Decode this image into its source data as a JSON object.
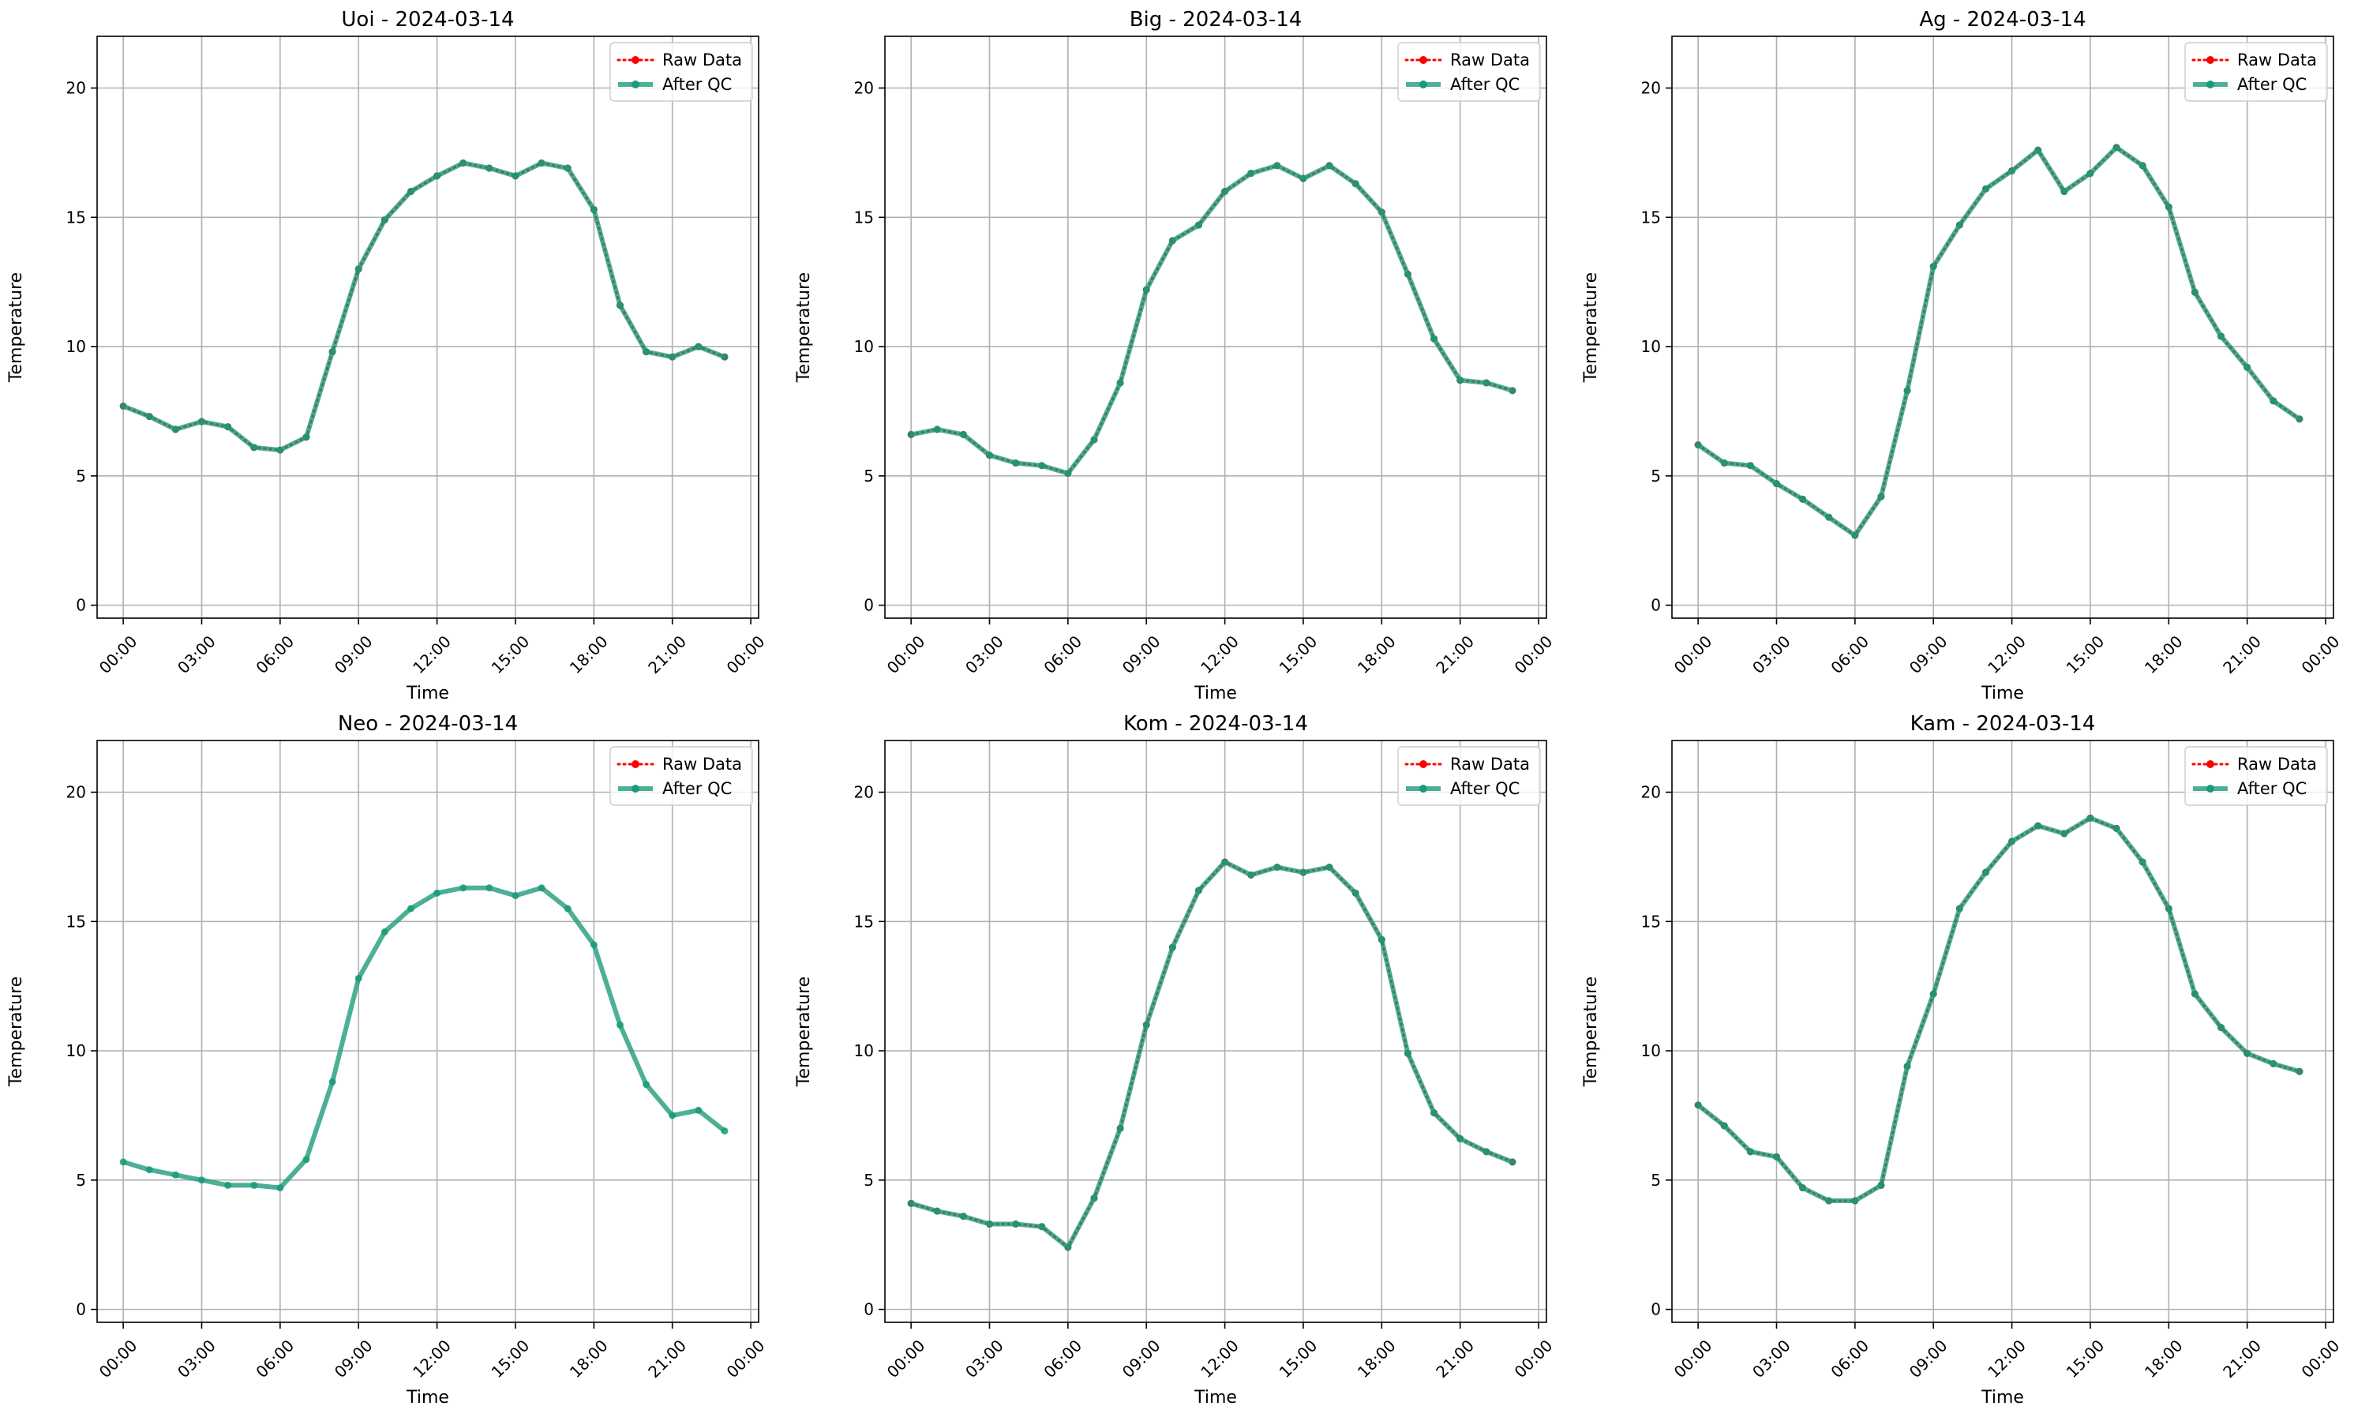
{
  "chart_data": [
    {
      "type": "line",
      "title": "Uoi - 2024-03-14",
      "xlabel": "Time",
      "ylabel": "Temperature",
      "x_tick_labels": [
        "00:00",
        "03:00",
        "06:00",
        "09:00",
        "12:00",
        "15:00",
        "18:00",
        "21:00",
        "00:00"
      ],
      "y_ticks": [
        0,
        5,
        10,
        15,
        20
      ],
      "ylim": [
        -0.5,
        22
      ],
      "grid": true,
      "legend_position": "top-right",
      "x_hours": [
        0,
        1,
        2,
        3,
        4,
        5,
        6,
        7,
        8,
        9,
        10,
        11,
        12,
        13,
        14,
        15,
        16,
        17,
        18,
        19,
        20,
        21,
        22,
        23
      ],
      "series": [
        {
          "name": "Raw Data",
          "color": "#ff0000",
          "style": "dotted",
          "values": [
            7.7,
            7.3,
            6.8,
            7.1,
            6.9,
            6.1,
            6.0,
            6.5,
            9.8,
            13.0,
            14.9,
            16.0,
            16.6,
            17.1,
            16.9,
            16.6,
            17.1,
            16.9,
            15.3,
            11.6,
            9.8,
            9.6,
            10.0,
            9.6
          ]
        },
        {
          "name": "After QC",
          "color": "#1a9a78",
          "style": "solid",
          "values": [
            7.7,
            7.3,
            6.8,
            7.1,
            6.9,
            6.1,
            6.0,
            6.5,
            9.8,
            13.0,
            14.9,
            16.0,
            16.6,
            17.1,
            16.9,
            16.6,
            17.1,
            16.9,
            15.3,
            11.6,
            9.8,
            9.6,
            10.0,
            9.6
          ]
        }
      ]
    },
    {
      "type": "line",
      "title": "Big - 2024-03-14",
      "xlabel": "Time",
      "ylabel": "Temperature",
      "x_tick_labels": [
        "00:00",
        "03:00",
        "06:00",
        "09:00",
        "12:00",
        "15:00",
        "18:00",
        "21:00",
        "00:00"
      ],
      "y_ticks": [
        0,
        5,
        10,
        15,
        20
      ],
      "ylim": [
        -0.5,
        22
      ],
      "grid": true,
      "legend_position": "top-right",
      "x_hours": [
        0,
        1,
        2,
        3,
        4,
        5,
        6,
        7,
        8,
        9,
        10,
        11,
        12,
        13,
        14,
        15,
        16,
        17,
        18,
        19,
        20,
        21,
        22,
        23
      ],
      "series": [
        {
          "name": "Raw Data",
          "color": "#ff0000",
          "style": "dotted",
          "values": [
            6.6,
            6.8,
            6.6,
            5.8,
            5.5,
            5.4,
            5.1,
            6.4,
            8.6,
            12.2,
            14.1,
            14.7,
            16.0,
            16.7,
            17.0,
            16.5,
            17.0,
            16.3,
            15.2,
            12.8,
            10.3,
            8.7,
            8.6,
            8.3
          ]
        },
        {
          "name": "After QC",
          "color": "#1a9a78",
          "style": "solid",
          "values": [
            6.6,
            6.8,
            6.6,
            5.8,
            5.5,
            5.4,
            5.1,
            6.4,
            8.6,
            12.2,
            14.1,
            14.7,
            16.0,
            16.7,
            17.0,
            16.5,
            17.0,
            16.3,
            15.2,
            12.8,
            10.3,
            8.7,
            8.6,
            8.3
          ]
        }
      ]
    },
    {
      "type": "line",
      "title": "Ag - 2024-03-14",
      "xlabel": "Time",
      "ylabel": "Temperature",
      "x_tick_labels": [
        "00:00",
        "03:00",
        "06:00",
        "09:00",
        "12:00",
        "15:00",
        "18:00",
        "21:00",
        "00:00"
      ],
      "y_ticks": [
        0,
        5,
        10,
        15,
        20
      ],
      "ylim": [
        -0.5,
        22
      ],
      "grid": true,
      "legend_position": "top-right",
      "x_hours": [
        0,
        1,
        2,
        3,
        4,
        5,
        6,
        7,
        8,
        9,
        10,
        11,
        12,
        13,
        14,
        15,
        16,
        17,
        18,
        19,
        20,
        21,
        22,
        23
      ],
      "series": [
        {
          "name": "Raw Data",
          "color": "#ff0000",
          "style": "dotted",
          "values": [
            6.2,
            5.5,
            5.4,
            4.7,
            4.1,
            3.4,
            2.7,
            4.2,
            8.3,
            13.1,
            14.7,
            16.1,
            16.8,
            17.6,
            16.0,
            16.7,
            17.7,
            17.0,
            15.4,
            12.1,
            10.4,
            9.2,
            7.9,
            7.2
          ]
        },
        {
          "name": "After QC",
          "color": "#1a9a78",
          "style": "solid",
          "values": [
            6.2,
            5.5,
            5.4,
            4.7,
            4.1,
            3.4,
            2.7,
            4.2,
            8.3,
            13.1,
            14.7,
            16.1,
            16.8,
            17.6,
            16.0,
            16.7,
            17.7,
            17.0,
            15.4,
            12.1,
            10.4,
            9.2,
            7.9,
            7.2
          ]
        }
      ]
    },
    {
      "type": "line",
      "title": "Neo - 2024-03-14",
      "xlabel": "Time",
      "ylabel": "Temperature",
      "x_tick_labels": [
        "00:00",
        "03:00",
        "06:00",
        "09:00",
        "12:00",
        "15:00",
        "18:00",
        "21:00",
        "00:00"
      ],
      "y_ticks": [
        0,
        5,
        10,
        15,
        20
      ],
      "ylim": [
        -0.5,
        22
      ],
      "grid": true,
      "legend_position": "top-right",
      "x_hours": [
        0,
        1,
        2,
        3,
        4,
        5,
        6,
        7,
        8,
        9,
        10,
        11,
        12,
        13,
        14,
        15,
        16,
        17,
        18,
        19,
        20,
        21,
        22,
        23
      ],
      "series": [
        {
          "name": "Raw Data",
          "color": "#ff0000",
          "style": "dotted",
          "values": []
        },
        {
          "name": "After QC",
          "color": "#1a9a78",
          "style": "solid",
          "values": [
            5.7,
            5.4,
            5.2,
            5.0,
            4.8,
            4.8,
            4.7,
            5.8,
            8.8,
            12.8,
            14.6,
            15.5,
            16.1,
            16.3,
            16.3,
            16.0,
            16.3,
            15.5,
            14.1,
            11.0,
            8.7,
            7.5,
            7.7,
            6.9
          ]
        }
      ]
    },
    {
      "type": "line",
      "title": "Kom - 2024-03-14",
      "xlabel": "Time",
      "ylabel": "Temperature",
      "x_tick_labels": [
        "00:00",
        "03:00",
        "06:00",
        "09:00",
        "12:00",
        "15:00",
        "18:00",
        "21:00",
        "00:00"
      ],
      "y_ticks": [
        0,
        5,
        10,
        15,
        20
      ],
      "ylim": [
        -0.5,
        22
      ],
      "grid": true,
      "legend_position": "top-right",
      "x_hours": [
        0,
        1,
        2,
        3,
        4,
        5,
        6,
        7,
        8,
        9,
        10,
        11,
        12,
        13,
        14,
        15,
        16,
        17,
        18,
        19,
        20,
        21,
        22,
        23
      ],
      "series": [
        {
          "name": "Raw Data",
          "color": "#ff0000",
          "style": "dotted",
          "values": [
            4.1,
            3.8,
            3.6,
            3.3,
            3.3,
            3.2,
            2.4,
            4.3,
            7.0,
            11.0,
            14.0,
            16.2,
            17.3,
            16.8,
            17.1,
            16.9,
            17.1,
            16.1,
            14.3,
            9.9,
            7.6,
            6.6,
            6.1,
            5.7
          ]
        },
        {
          "name": "After QC",
          "color": "#1a9a78",
          "style": "solid",
          "values": [
            4.1,
            3.8,
            3.6,
            3.3,
            3.3,
            3.2,
            2.4,
            4.3,
            7.0,
            11.0,
            14.0,
            16.2,
            17.3,
            16.8,
            17.1,
            16.9,
            17.1,
            16.1,
            14.3,
            9.9,
            7.6,
            6.6,
            6.1,
            5.7
          ]
        }
      ]
    },
    {
      "type": "line",
      "title": "Kam - 2024-03-14",
      "xlabel": "Time",
      "ylabel": "Temperature",
      "x_tick_labels": [
        "00:00",
        "03:00",
        "06:00",
        "09:00",
        "12:00",
        "15:00",
        "18:00",
        "21:00",
        "00:00"
      ],
      "y_ticks": [
        0,
        5,
        10,
        15,
        20
      ],
      "ylim": [
        -0.5,
        22
      ],
      "grid": true,
      "legend_position": "top-right",
      "x_hours": [
        0,
        1,
        2,
        3,
        4,
        5,
        6,
        7,
        8,
        9,
        10,
        11,
        12,
        13,
        14,
        15,
        16,
        17,
        18,
        19,
        20,
        21,
        22,
        23
      ],
      "series": [
        {
          "name": "Raw Data",
          "color": "#ff0000",
          "style": "dotted",
          "values": [
            7.9,
            7.1,
            6.1,
            5.9,
            4.7,
            4.2,
            4.2,
            4.8,
            9.4,
            12.2,
            15.5,
            16.9,
            18.1,
            18.7,
            18.4,
            19.0,
            18.6,
            17.3,
            15.5,
            12.2,
            10.9,
            9.9,
            9.5,
            9.2
          ]
        },
        {
          "name": "After QC",
          "color": "#1a9a78",
          "style": "solid",
          "values": [
            7.9,
            7.1,
            6.1,
            5.9,
            4.7,
            4.2,
            4.2,
            4.8,
            9.4,
            12.2,
            15.5,
            16.9,
            18.1,
            18.7,
            18.4,
            19.0,
            18.6,
            17.3,
            15.5,
            12.2,
            10.9,
            9.9,
            9.5,
            9.2
          ]
        }
      ]
    }
  ]
}
